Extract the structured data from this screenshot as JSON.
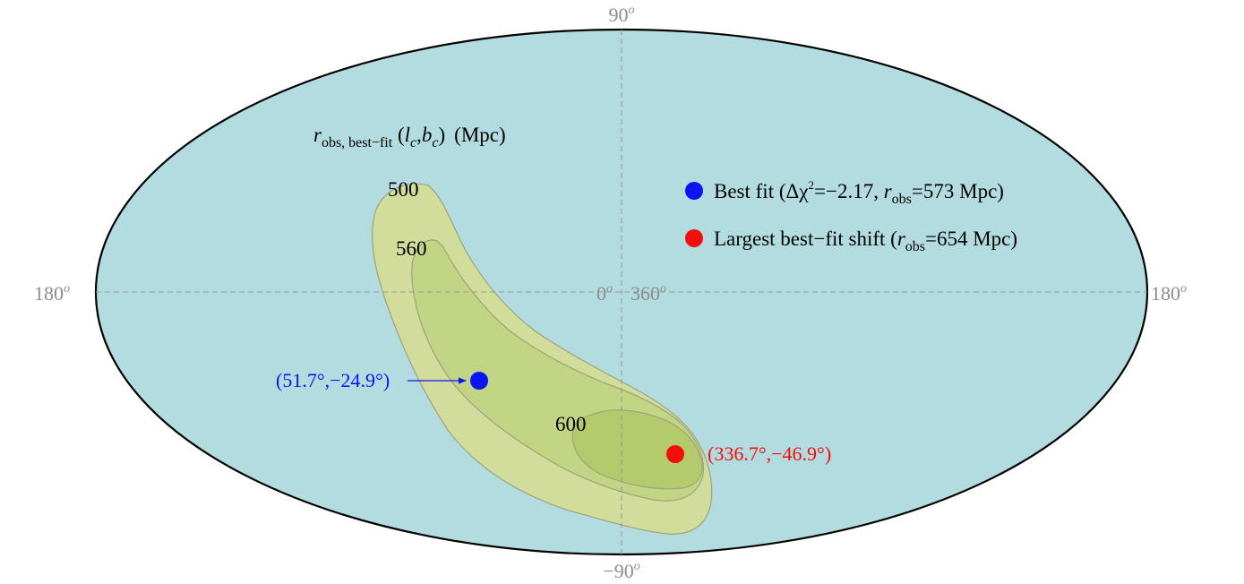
{
  "colors": {
    "sky_fill": "#b2dcdf",
    "outline": "#000000",
    "grid": "#9a9a9a",
    "contour_outer": "#d2dd9c",
    "contour_mid": "#c2d584",
    "contour_inner": "#b3ca6d",
    "contour_stroke": "#9ea37a",
    "best_fit": "#0a14f5",
    "largest_shift": "#f50d0d",
    "axis_text": "#8c8c8c"
  },
  "axes": {
    "top": "90",
    "bottom": "−90",
    "left": "180",
    "right": "180",
    "center_left": "0",
    "center_right": "360",
    "degree_sup": "o"
  },
  "title": {
    "var": "r",
    "subscript": "obs, best−fit",
    "paren_open": " (",
    "l": "l",
    "l_sub": "c",
    "comma": ",",
    "b": "b",
    "b_sub": "c",
    "paren_close": ")",
    "units": "(Mpc)"
  },
  "contours": [
    {
      "label": "500"
    },
    {
      "label": "560"
    },
    {
      "label": "600"
    }
  ],
  "legend": [
    {
      "prefix": "Best fit (Δχ",
      "sup": "2",
      "middle": "=−2.17, ",
      "var": "r",
      "sub": "obs",
      "suffix": "=573 Mpc)"
    },
    {
      "prefix": "Largest best−fit shift (",
      "var": "r",
      "sub": "obs",
      "suffix": "=654 Mpc)"
    }
  ],
  "points": {
    "best_fit": {
      "label": "(51.7°,−24.9°)",
      "l": 51.7,
      "b": -24.9
    },
    "largest_shift": {
      "label": "(336.7°,−46.9°)",
      "l": 336.7,
      "b": -46.9
    }
  }
}
